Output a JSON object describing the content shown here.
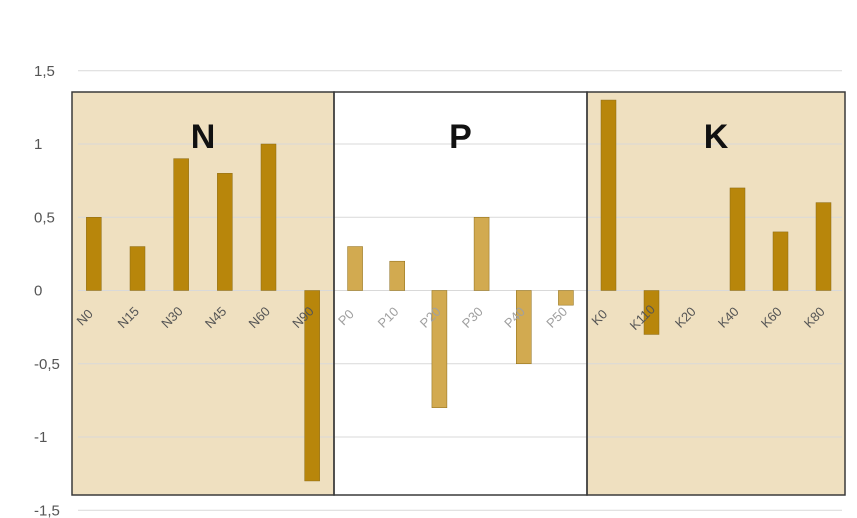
{
  "chart_data": {
    "type": "bar",
    "title": "",
    "xlabel": "",
    "ylabel": "",
    "ylim": [
      -1.5,
      1.5
    ],
    "y_ticks": [
      1.5,
      1,
      0.5,
      0,
      -0.5,
      -1,
      -1.5
    ],
    "y_tick_labels": [
      "1,5",
      "1",
      "0,5",
      "0",
      "-0,5",
      "-1",
      "-1,5"
    ],
    "grid": true,
    "legend": "none",
    "groups": [
      {
        "label": "N",
        "background": "#efe0c0",
        "bar_color": "#b8860b",
        "label_color": "#555555",
        "categories": [
          "N0",
          "N15",
          "N30",
          "N45",
          "N60",
          "N90"
        ],
        "values": [
          0.5,
          0.3,
          0.9,
          0.8,
          1.0,
          -1.3
        ]
      },
      {
        "label": "P",
        "background": "#ffffff",
        "bar_color": "#d2aa50",
        "label_color": "#a0a0a0",
        "categories": [
          "P0",
          "P10",
          "P20",
          "P30",
          "P40",
          "P50"
        ],
        "values": [
          0.3,
          0.2,
          -0.8,
          0.5,
          -0.5,
          -0.1
        ]
      },
      {
        "label": "K",
        "background": "#efe0c0",
        "bar_color": "#b8860b",
        "label_color": "#555555",
        "categories": [
          "K0",
          "K110",
          "K20",
          "K40",
          "K60",
          "K80"
        ],
        "values": [
          1.3,
          -0.3,
          0,
          0.7,
          0.4,
          0.6
        ]
      }
    ]
  }
}
